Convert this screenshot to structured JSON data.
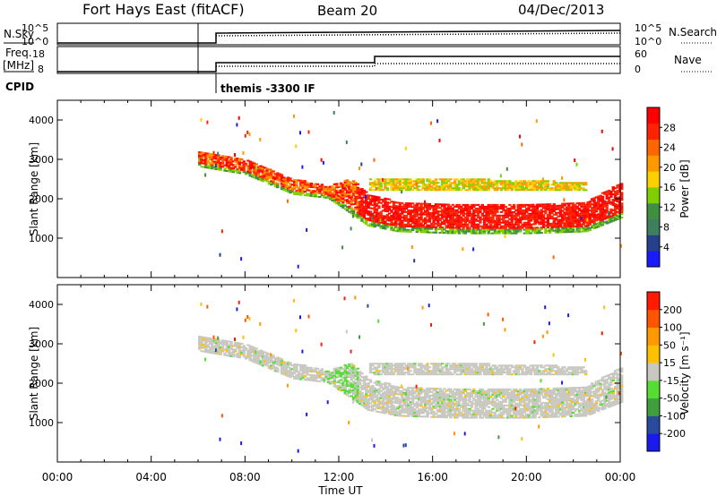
{
  "header": {
    "station": "Fort Hays East (fitACF)",
    "beam": "Beam 20",
    "date": "04/Dec/2013"
  },
  "params": {
    "nsky_label": "N.Sky",
    "nsky_ticks": [
      "10^5",
      "10^0"
    ],
    "nsearch_label": "N.Search",
    "nsearch_ticks": [
      "10^5",
      "10^0"
    ],
    "freq_label_1": "Freq.",
    "freq_label_2": "[MHz]",
    "freq_ticks": [
      "18",
      "8"
    ],
    "nave_label": "Nave",
    "nave_ticks": [
      "60",
      "0"
    ],
    "cpid_label": "CPID",
    "cpid_value": "themis -3300 IF"
  },
  "colors": {
    "power": [
      "#1a1aff",
      "#27408b",
      "#3f7f5f",
      "#3f8f3f",
      "#7fd000",
      "#ffd000",
      "#ff9900",
      "#ff6600",
      "#ff2200",
      "#ff0000"
    ],
    "velocity": [
      "#1a1aee",
      "#2a4aa0",
      "#3f9f3f",
      "#55dd33",
      "#c8c8c0",
      "#ffc000",
      "#ff9900",
      "#ff5500",
      "#ff1a00"
    ]
  },
  "chart_data": [
    {
      "type": "heatmap",
      "name": "power",
      "xlabel": "",
      "ylabel": "Slant Range [km]",
      "xlim": [
        0,
        24
      ],
      "ylim": [
        0,
        4500
      ],
      "yticks": [
        "4000",
        "3000",
        "2000",
        "1000"
      ],
      "colorbar_label": "Power [dB]",
      "colorbar_ticks": [
        "28",
        "24",
        "20",
        "16",
        "12",
        "8",
        "4"
      ],
      "data_start_hour": 6.0,
      "echo_bands": [
        {
          "t": [
            6.0,
            8.0,
            10.0,
            11.5,
            12.5,
            13.2,
            14.5,
            17.0,
            20.0,
            22.5,
            24.0
          ],
          "lower": [
            2800,
            2600,
            2100,
            2000,
            1600,
            1300,
            1150,
            1100,
            1100,
            1150,
            1500
          ],
          "upper": [
            3200,
            3000,
            2500,
            2300,
            2500,
            2100,
            1900,
            1850,
            1850,
            1900,
            2400
          ],
          "level": "high"
        },
        {
          "t": [
            13.2,
            16.0,
            20.0,
            22.5
          ],
          "lower": [
            2200,
            2200,
            2200,
            2200
          ],
          "upper": [
            2500,
            2500,
            2450,
            2400
          ],
          "level": "mid"
        }
      ]
    },
    {
      "type": "heatmap",
      "name": "velocity",
      "xlabel": "Time UT",
      "ylabel": "Slant Range [km]",
      "xlim": [
        0,
        24
      ],
      "ylim": [
        0,
        4500
      ],
      "xticks": [
        "00:00",
        "04:00",
        "08:00",
        "12:00",
        "16:00",
        "20:00",
        "00:00"
      ],
      "yticks": [
        "4000",
        "3000",
        "2000",
        "1000"
      ],
      "colorbar_label": "Velocity [m s⁻¹]",
      "colorbar_ticks": [
        "200",
        "100",
        "50",
        "15",
        "-15",
        "-50",
        "-100",
        "-200"
      ],
      "dominant_value": "-15 to 15"
    }
  ]
}
